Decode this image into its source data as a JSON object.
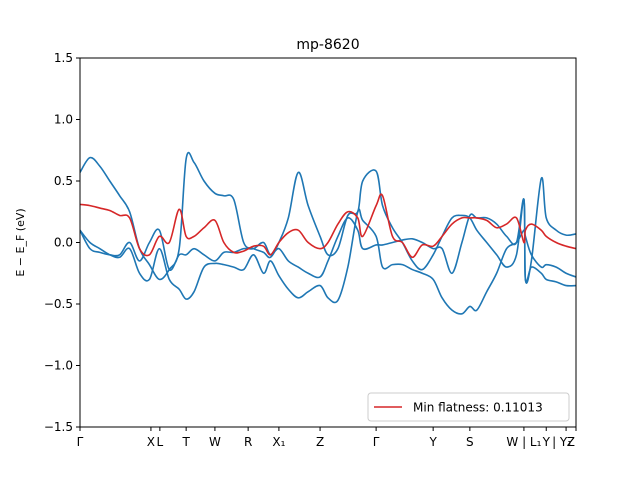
{
  "chart_data": {
    "type": "line",
    "title": "mp-8620",
    "xlabel": "",
    "ylabel": "E − E_F (eV)",
    "ylim": [
      -1.5,
      1.5
    ],
    "xlim": [
      0,
      100
    ],
    "yticks": [
      -1.5,
      -1.0,
      -0.5,
      0.0,
      0.5,
      1.0,
      1.5
    ],
    "ytick_labels": [
      "−1.5",
      "−1.0",
      "−0.5",
      "0.0",
      "0.5",
      "1.0",
      "1.5"
    ],
    "xticks": [
      {
        "x": 0,
        "label": "Γ"
      },
      {
        "x": 14.3,
        "label": "X"
      },
      {
        "x": 16.1,
        "label": "L"
      },
      {
        "x": 21.4,
        "label": "T"
      },
      {
        "x": 27.2,
        "label": "W"
      },
      {
        "x": 33.9,
        "label": "R"
      },
      {
        "x": 40.1,
        "label": "X₁"
      },
      {
        "x": 48.4,
        "label": "Z"
      },
      {
        "x": 59.7,
        "label": "Γ"
      },
      {
        "x": 71.2,
        "label": "Y"
      },
      {
        "x": 78.6,
        "label": "S"
      },
      {
        "x": 89.5,
        "label": "W | L₁"
      },
      {
        "x": 94.0,
        "label": "Y"
      },
      {
        "x": 98.0,
        "label": "| Y₁"
      },
      {
        "x": 100.0,
        "label": "Z"
      }
    ],
    "grid": false,
    "legend": {
      "position": "lower-right",
      "entries": [
        "Min flatness: 0.11013"
      ]
    },
    "series": [
      {
        "name": "",
        "color": "#1f77b4",
        "x": [
          0,
          2,
          4,
          6,
          8,
          10,
          12,
          14,
          16,
          18,
          20,
          21.4,
          23,
          25,
          27.2,
          29,
          31,
          33,
          35,
          37,
          38.4,
          40.1,
          42,
          44,
          46,
          48.4,
          50,
          52,
          54,
          56,
          57,
          59.7,
          61,
          63,
          65,
          67,
          69,
          71.2,
          73,
          75,
          77,
          78.6,
          80,
          82,
          84,
          86,
          88,
          89.5,
          89.8,
          91,
          93,
          94,
          96,
          98,
          100
        ],
        "values": [
          0.57,
          0.69,
          0.62,
          0.5,
          0.38,
          0.25,
          -0.05,
          -0.18,
          -0.3,
          -0.22,
          -0.05,
          0.68,
          0.65,
          0.5,
          0.4,
          0.38,
          0.35,
          0.0,
          -0.05,
          -0.08,
          -0.12,
          0.0,
          0.2,
          0.57,
          0.3,
          0.05,
          -0.1,
          -0.05,
          0.22,
          0.25,
          0.5,
          0.58,
          0.3,
          0.12,
          0.0,
          -0.15,
          -0.22,
          -0.1,
          0.05,
          0.2,
          0.22,
          0.2,
          0.1,
          0.0,
          -0.1,
          -0.2,
          -0.1,
          0.35,
          -0.3,
          -0.15,
          0.52,
          0.2,
          0.1,
          0.06,
          0.07
        ]
      },
      {
        "name": "",
        "color": "#1f77b4",
        "x": [
          0,
          2,
          4,
          6,
          8,
          10,
          12,
          14,
          16,
          18,
          20,
          21.4,
          23,
          25,
          27.2,
          29,
          31,
          33,
          35,
          37,
          38.4,
          40.1,
          42,
          44,
          46,
          48.4,
          50,
          52,
          54,
          56,
          57,
          59.7,
          61,
          63,
          65,
          67,
          69,
          71.2,
          73,
          75,
          77,
          78.6,
          80,
          82,
          84,
          86,
          88,
          89.5,
          89.8,
          91,
          93,
          94,
          96,
          98,
          100
        ],
        "values": [
          0.1,
          0.0,
          -0.05,
          -0.1,
          -0.12,
          -0.05,
          -0.25,
          -0.3,
          -0.05,
          -0.3,
          -0.38,
          -0.46,
          -0.4,
          -0.2,
          -0.17,
          -0.18,
          -0.2,
          -0.22,
          -0.1,
          -0.25,
          -0.15,
          -0.27,
          -0.38,
          -0.45,
          -0.4,
          -0.35,
          -0.45,
          -0.47,
          -0.2,
          0.25,
          0.18,
          0.05,
          -0.2,
          -0.18,
          -0.18,
          -0.22,
          -0.25,
          -0.3,
          -0.45,
          -0.55,
          -0.58,
          -0.52,
          -0.55,
          -0.4,
          -0.25,
          -0.05,
          0.0,
          0.1,
          0.05,
          -0.1,
          -0.2,
          -0.18,
          -0.2,
          -0.25,
          -0.28
        ]
      },
      {
        "name": "",
        "color": "#1f77b4",
        "x": [
          0,
          2,
          4,
          6,
          8,
          10,
          12,
          14,
          16,
          18,
          20,
          21.4,
          23,
          25,
          27.2,
          29,
          31,
          33,
          35,
          37,
          38.4,
          40.1,
          42,
          44,
          46,
          48.4,
          50,
          52,
          54,
          56,
          57,
          59.7,
          61,
          63,
          65,
          67,
          69,
          71.2,
          73,
          75,
          77,
          78.6,
          80,
          82,
          84,
          86,
          88,
          89.5,
          89.8,
          91,
          93,
          94,
          96,
          98,
          100
        ],
        "values": [
          0.1,
          -0.05,
          -0.08,
          -0.1,
          -0.1,
          0.0,
          -0.15,
          0.0,
          0.1,
          -0.22,
          -0.1,
          -0.1,
          -0.05,
          -0.1,
          -0.15,
          -0.08,
          -0.08,
          -0.05,
          -0.05,
          0.0,
          -0.1,
          -0.05,
          -0.15,
          -0.2,
          -0.25,
          -0.28,
          -0.15,
          0.05,
          0.2,
          0.1,
          -0.05,
          -0.02,
          -0.02,
          0.0,
          0.02,
          0.03,
          0.0,
          -0.05,
          -0.05,
          -0.25,
          0.0,
          0.22,
          0.2,
          0.2,
          0.15,
          0.05,
          0.0,
          0.35,
          -0.3,
          -0.2,
          -0.25,
          -0.3,
          -0.32,
          -0.35,
          -0.35
        ]
      },
      {
        "name": "Min flatness: 0.11013",
        "color": "#d62728",
        "x": [
          0,
          2,
          4,
          6,
          8,
          10,
          12,
          14,
          16,
          18,
          20,
          21.4,
          23,
          25,
          27.2,
          29,
          31,
          33,
          35,
          37,
          38.4,
          40.1,
          42,
          44,
          46,
          48.4,
          50,
          52,
          54,
          56,
          57,
          59.7,
          61,
          63,
          65,
          67,
          69,
          71.2,
          73,
          75,
          77,
          78.6,
          80,
          82,
          84,
          86,
          88,
          89.5,
          89.8,
          91,
          93,
          94,
          96,
          98,
          100
        ],
        "values": [
          0.31,
          0.3,
          0.28,
          0.26,
          0.22,
          0.2,
          -0.05,
          -0.1,
          0.05,
          0.0,
          0.27,
          0.05,
          0.05,
          0.12,
          0.18,
          0.0,
          -0.08,
          -0.07,
          -0.03,
          -0.03,
          -0.1,
          0.0,
          0.08,
          0.1,
          0.0,
          -0.05,
          0.0,
          0.15,
          0.25,
          0.2,
          0.05,
          0.3,
          0.38,
          0.05,
          0.0,
          -0.12,
          -0.02,
          -0.03,
          0.05,
          0.15,
          0.2,
          0.2,
          0.2,
          0.18,
          0.12,
          0.15,
          0.2,
          0.0,
          0.1,
          0.15,
          0.1,
          0.05,
          0.0,
          -0.03,
          -0.05
        ]
      }
    ]
  }
}
